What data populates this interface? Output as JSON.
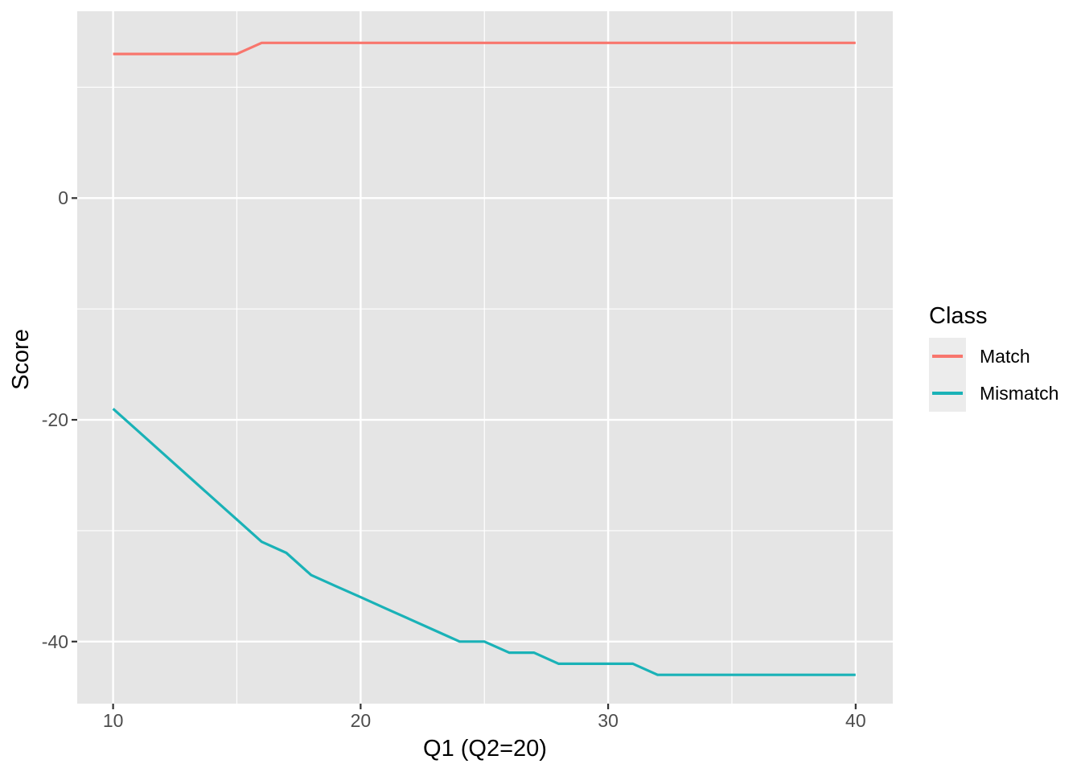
{
  "chart_data": {
    "type": "line",
    "title": "",
    "xlabel": "Q1 (Q2=20)",
    "ylabel": "Score",
    "x": [
      10,
      11,
      12,
      13,
      14,
      15,
      16,
      17,
      18,
      19,
      20,
      21,
      22,
      23,
      24,
      25,
      26,
      27,
      28,
      29,
      30,
      31,
      32,
      33,
      34,
      35,
      36,
      37,
      38,
      39,
      40
    ],
    "series": [
      {
        "name": "Match",
        "color": "#F8766D",
        "values": [
          13,
          13,
          13,
          13,
          13,
          13,
          14,
          14,
          14,
          14,
          14,
          14,
          14,
          14,
          14,
          14,
          14,
          14,
          14,
          14,
          14,
          14,
          14,
          14,
          14,
          14,
          14,
          14,
          14,
          14,
          14
        ]
      },
      {
        "name": "Mismatch",
        "color": "#1AB2B7",
        "values": [
          -19,
          -21,
          -23,
          -25,
          -27,
          -29,
          -31,
          -32,
          -34,
          -35,
          -36,
          -37,
          -38,
          -39,
          -40,
          -40,
          -41,
          -41,
          -42,
          -42,
          -42,
          -42,
          -43,
          -43,
          -43,
          -43,
          -43,
          -43,
          -43,
          -43,
          -43
        ]
      }
    ],
    "xlim": [
      8.55,
      41.5
    ],
    "ylim": [
      -45.6,
      16.85
    ],
    "x_ticks": [
      10,
      20,
      30,
      40
    ],
    "y_ticks": [
      0,
      -20,
      -40
    ],
    "x_minor_ticks": [
      15,
      25,
      35
    ],
    "y_minor_ticks": [
      10,
      -10,
      -30
    ],
    "grid": "on",
    "legend_position": "right"
  },
  "legend": {
    "title": "Class",
    "items": [
      {
        "label": "Match",
        "color": "#F8766D"
      },
      {
        "label": "Mismatch",
        "color": "#1AB2B7"
      }
    ]
  },
  "theme": {
    "page_bg": "#FFFFFF",
    "panel_bg": "#E5E5E5",
    "grid_color": "#FFFFFF",
    "tick_mark_color": "#333333",
    "tick_label_color": "#4D4D4D",
    "axis_title_color": "#000000",
    "legend_key_bg": "#ECECEC",
    "line_width": 3.2
  }
}
